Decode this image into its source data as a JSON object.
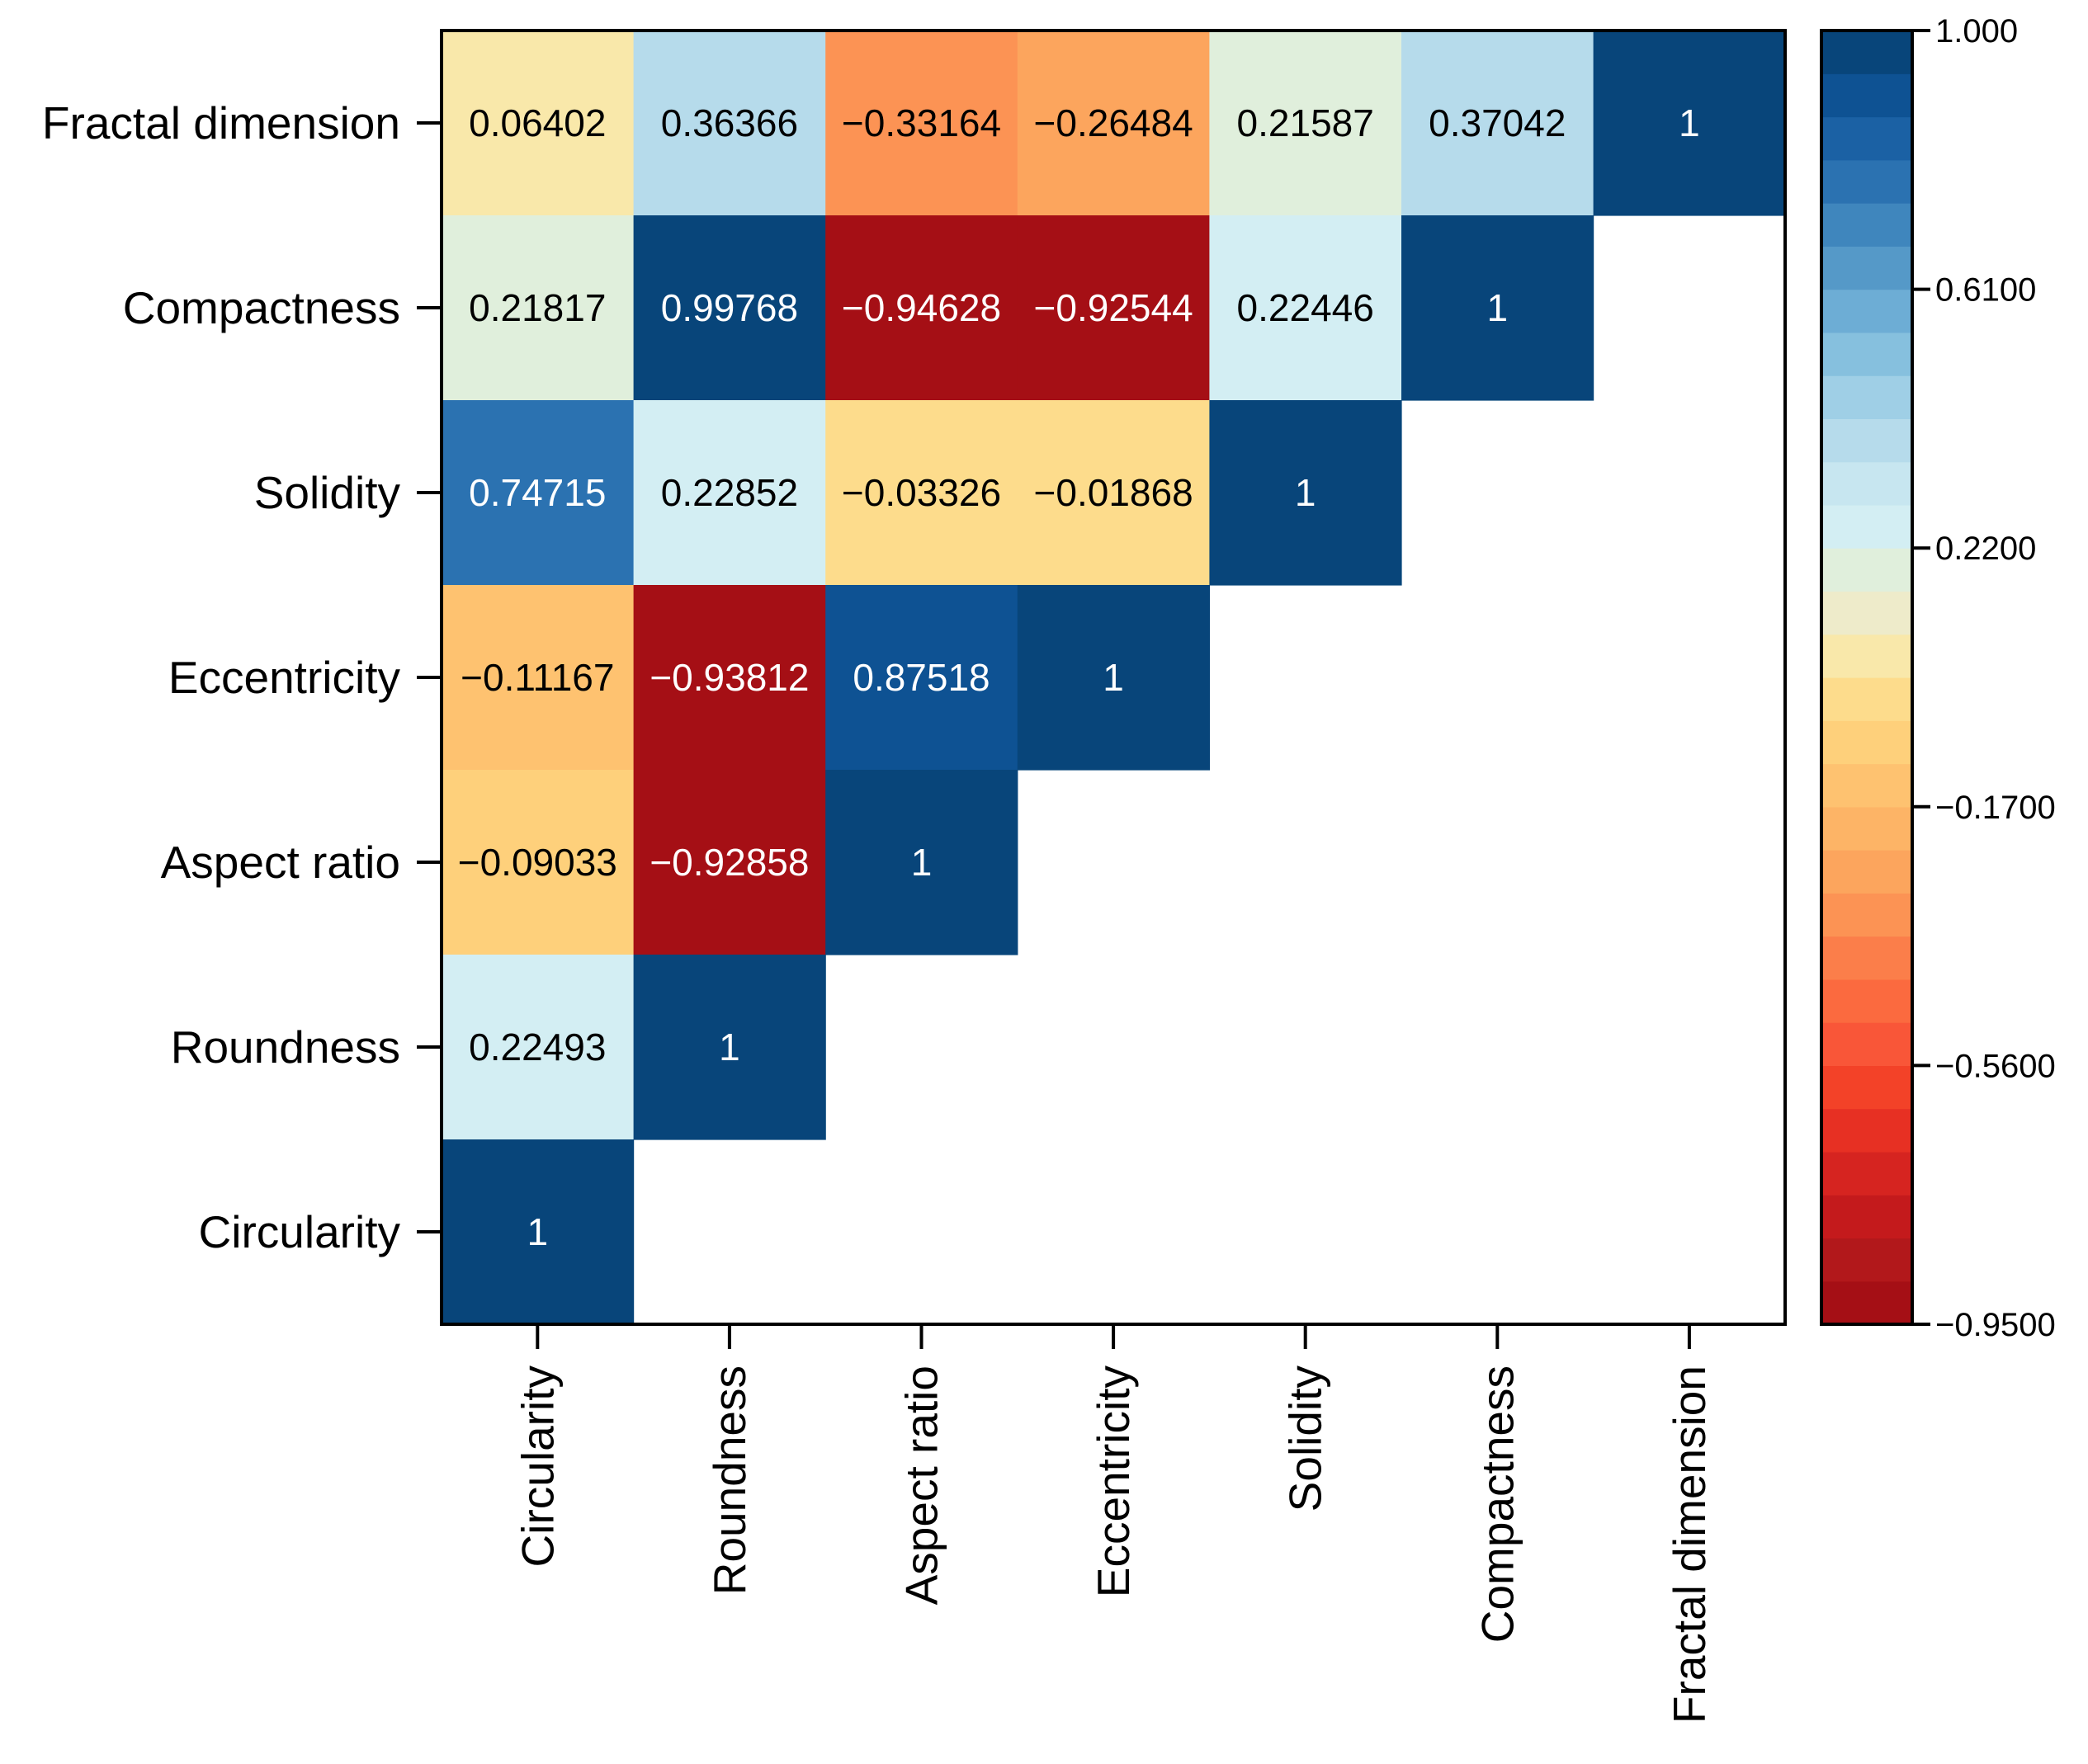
{
  "chart_data": {
    "type": "heatmap",
    "title": "",
    "xlabel": "",
    "ylabel": "",
    "x_labels": [
      "Circularity",
      "Roundness",
      "Aspect ratio",
      "Eccentricity",
      "Solidity",
      "Compactness",
      "Fractal dimension"
    ],
    "y_labels": [
      "Fractal dimension",
      "Compactness",
      "Solidity",
      "Eccentricity",
      "Aspect ratio",
      "Roundness",
      "Circularity"
    ],
    "cells": [
      {
        "row": 0,
        "col": 0,
        "value": 0.06402,
        "text": "0.06402"
      },
      {
        "row": 0,
        "col": 1,
        "value": 0.36366,
        "text": "0.36366"
      },
      {
        "row": 0,
        "col": 2,
        "value": -0.33164,
        "text": "−0.33164"
      },
      {
        "row": 0,
        "col": 3,
        "value": -0.26484,
        "text": "−0.26484"
      },
      {
        "row": 0,
        "col": 4,
        "value": 0.21587,
        "text": "0.21587"
      },
      {
        "row": 0,
        "col": 5,
        "value": 0.37042,
        "text": "0.37042"
      },
      {
        "row": 0,
        "col": 6,
        "value": 1,
        "text": "1"
      },
      {
        "row": 1,
        "col": 0,
        "value": 0.21817,
        "text": "0.21817"
      },
      {
        "row": 1,
        "col": 1,
        "value": 0.99768,
        "text": "0.99768"
      },
      {
        "row": 1,
        "col": 2,
        "value": -0.94628,
        "text": "−0.94628"
      },
      {
        "row": 1,
        "col": 3,
        "value": -0.92544,
        "text": "−0.92544"
      },
      {
        "row": 1,
        "col": 4,
        "value": 0.22446,
        "text": "0.22446"
      },
      {
        "row": 1,
        "col": 5,
        "value": 1,
        "text": "1"
      },
      {
        "row": 2,
        "col": 0,
        "value": 0.74715,
        "text": "0.74715"
      },
      {
        "row": 2,
        "col": 1,
        "value": 0.22852,
        "text": "0.22852"
      },
      {
        "row": 2,
        "col": 2,
        "value": -0.03326,
        "text": "−0.03326"
      },
      {
        "row": 2,
        "col": 3,
        "value": -0.01868,
        "text": "−0.01868"
      },
      {
        "row": 2,
        "col": 4,
        "value": 1,
        "text": "1"
      },
      {
        "row": 3,
        "col": 0,
        "value": -0.11167,
        "text": "−0.11167"
      },
      {
        "row": 3,
        "col": 1,
        "value": -0.93812,
        "text": "−0.93812"
      },
      {
        "row": 3,
        "col": 2,
        "value": 0.87518,
        "text": "0.87518"
      },
      {
        "row": 3,
        "col": 3,
        "value": 1,
        "text": "1"
      },
      {
        "row": 4,
        "col": 0,
        "value": -0.09033,
        "text": "−0.09033"
      },
      {
        "row": 4,
        "col": 1,
        "value": -0.92858,
        "text": "−0.92858"
      },
      {
        "row": 4,
        "col": 2,
        "value": 1,
        "text": "1"
      },
      {
        "row": 5,
        "col": 0,
        "value": 0.22493,
        "text": "0.22493"
      },
      {
        "row": 5,
        "col": 1,
        "value": 1,
        "text": "1"
      },
      {
        "row": 6,
        "col": 0,
        "value": 1,
        "text": "1"
      }
    ],
    "colorbar": {
      "range": [
        -0.95,
        1.0
      ],
      "ticks": [
        1.0,
        0.61,
        0.22,
        -0.17,
        -0.56,
        -0.95
      ],
      "tick_labels": [
        "1.000",
        "0.6100",
        "0.2200",
        "−0.1700",
        "−0.5600",
        "−0.9500"
      ],
      "levels": 30,
      "colors_low_to_high": [
        "#a50f15",
        "#b2181b",
        "#c41a1c",
        "#d62420",
        "#e73023",
        "#f34228",
        "#f95638",
        "#fb6a3f",
        "#fb7e4a",
        "#fc9354",
        "#fca55d",
        "#fdb466",
        "#fec270",
        "#fed07b",
        "#fddc8c",
        "#f9e8aa",
        "#eeebca",
        "#e0efdc",
        "#d3eef3",
        "#c7e6f0",
        "#b6dbeb",
        "#9fcfe6",
        "#86c0de",
        "#6dadd5",
        "#5599c8",
        "#3f86bd",
        "#2b72b1",
        "#1b61a4",
        "#0e5293",
        "#08457a"
      ]
    },
    "annotation_text_color_dark": "#000000",
    "annotation_text_color_light": "#ffffff"
  }
}
